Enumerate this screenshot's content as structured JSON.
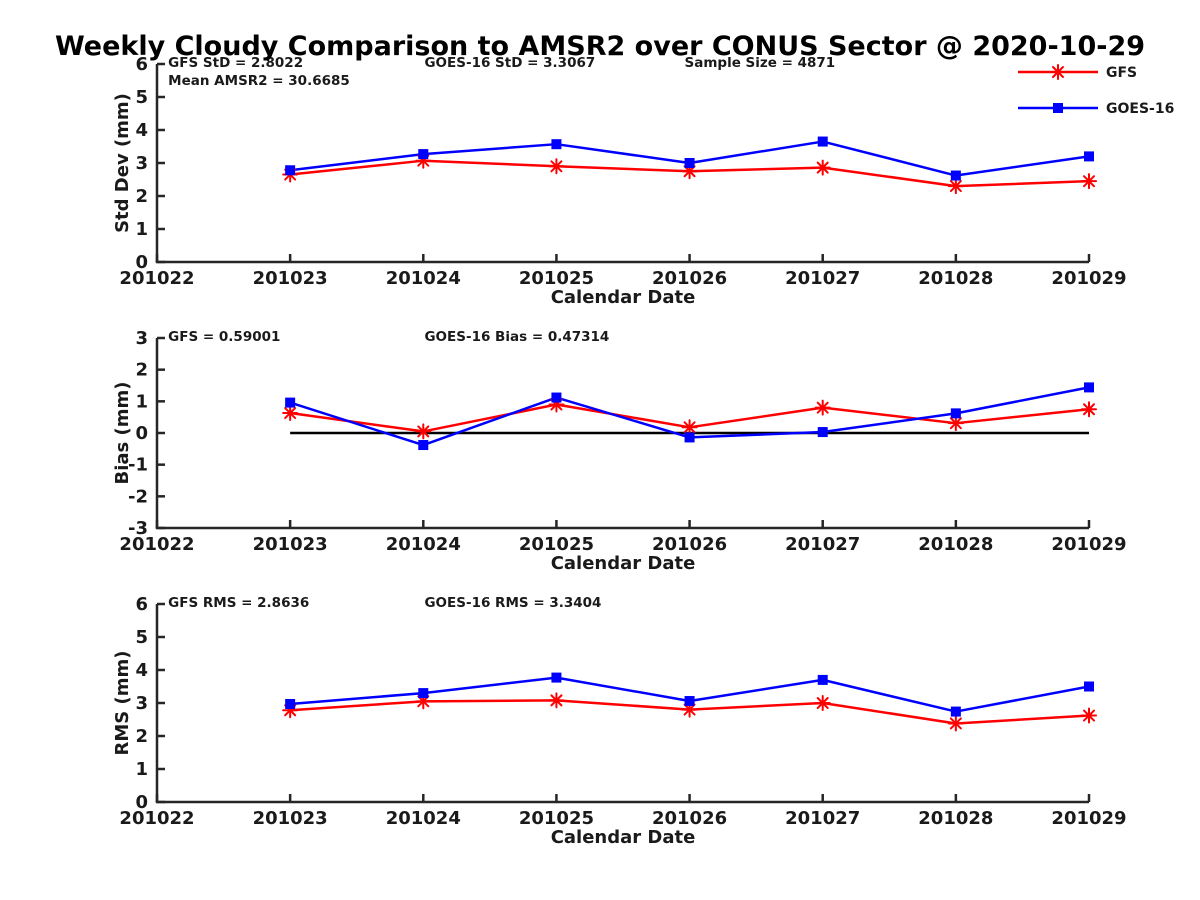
{
  "title": "Weekly Cloudy Comparison to AMSR2 over CONUS Sector @ 2020-10-29",
  "style": {
    "gfs_color": "#ff0000",
    "goes_color": "#0000ff",
    "axis_color": "#262626",
    "text_color": "#1a1a1a",
    "zero_line_color": "#000000",
    "background": "#ffffff"
  },
  "legend": {
    "items": [
      {
        "label": "GFS",
        "color": "#ff0000",
        "marker": "asterisk"
      },
      {
        "label": "GOES-16",
        "color": "#0000ff",
        "marker": "square"
      }
    ]
  },
  "chart_data": [
    {
      "type": "line",
      "panel": "std-dev",
      "ylabel": "Std Dev (mm)",
      "xlabel": "Calendar Date",
      "ylim": [
        0,
        6
      ],
      "yticks": [
        0,
        1,
        2,
        3,
        4,
        5,
        6
      ],
      "xticks": [
        "201022",
        "201023",
        "201024",
        "201025",
        "201026",
        "201027",
        "201028",
        "201029"
      ],
      "x": [
        "201023",
        "201024",
        "201025",
        "201026",
        "201027",
        "201028",
        "201029"
      ],
      "annotations": [
        {
          "text": "GFS StD = 2.8022",
          "ax": 0.012,
          "row": 0
        },
        {
          "text": "Mean AMSR2 = 30.6685",
          "ax": 0.012,
          "row": 1
        },
        {
          "text": "GOES-16 StD = 3.3067",
          "ax": 0.287,
          "row": 0
        },
        {
          "text": "Sample Size = 4871",
          "ax": 0.566,
          "row": 0
        }
      ],
      "series": [
        {
          "name": "GFS",
          "color": "#ff0000",
          "marker": "asterisk",
          "values": [
            2.65,
            3.07,
            2.9,
            2.75,
            2.86,
            2.3,
            2.45
          ]
        },
        {
          "name": "GOES-16",
          "color": "#0000ff",
          "marker": "square",
          "values": [
            2.78,
            3.27,
            3.57,
            3.0,
            3.65,
            2.62,
            3.2
          ]
        }
      ]
    },
    {
      "type": "line",
      "panel": "bias",
      "ylabel": "Bias (mm)",
      "xlabel": "Calendar Date",
      "ylim": [
        -3,
        3
      ],
      "yticks": [
        -3,
        -2,
        -1,
        0,
        1,
        2,
        3
      ],
      "xticks": [
        "201022",
        "201023",
        "201024",
        "201025",
        "201026",
        "201027",
        "201028",
        "201029"
      ],
      "x": [
        "201023",
        "201024",
        "201025",
        "201026",
        "201027",
        "201028",
        "201029"
      ],
      "zero_line": true,
      "annotations": [
        {
          "text": "GFS = 0.59001",
          "ax": 0.012,
          "row": 0
        },
        {
          "text": "GOES-16 Bias  = 0.47314",
          "ax": 0.287,
          "row": 0
        }
      ],
      "series": [
        {
          "name": "GFS",
          "color": "#ff0000",
          "marker": "asterisk",
          "values": [
            0.63,
            0.05,
            0.9,
            0.18,
            0.8,
            0.31,
            0.75
          ]
        },
        {
          "name": "GOES-16",
          "color": "#0000ff",
          "marker": "square",
          "values": [
            0.96,
            -0.38,
            1.12,
            -0.14,
            0.03,
            0.62,
            1.44
          ]
        }
      ]
    },
    {
      "type": "line",
      "panel": "rms",
      "ylabel": "RMS (mm)",
      "xlabel": "Calendar Date",
      "ylim": [
        0,
        6
      ],
      "yticks": [
        0,
        1,
        2,
        3,
        4,
        5,
        6
      ],
      "xticks": [
        "201022",
        "201023",
        "201024",
        "201025",
        "201026",
        "201027",
        "201028",
        "201029"
      ],
      "x": [
        "201023",
        "201024",
        "201025",
        "201026",
        "201027",
        "201028",
        "201029"
      ],
      "annotations": [
        {
          "text": "GFS RMS = 2.8636",
          "ax": 0.012,
          "row": 0
        },
        {
          "text": "GOES-16 RMS = 3.3404",
          "ax": 0.287,
          "row": 0
        }
      ],
      "series": [
        {
          "name": "GFS",
          "color": "#ff0000",
          "marker": "asterisk",
          "values": [
            2.78,
            3.05,
            3.08,
            2.8,
            3.0,
            2.38,
            2.62
          ]
        },
        {
          "name": "GOES-16",
          "color": "#0000ff",
          "marker": "square",
          "values": [
            2.97,
            3.3,
            3.77,
            3.06,
            3.7,
            2.74,
            3.5
          ]
        }
      ]
    }
  ]
}
